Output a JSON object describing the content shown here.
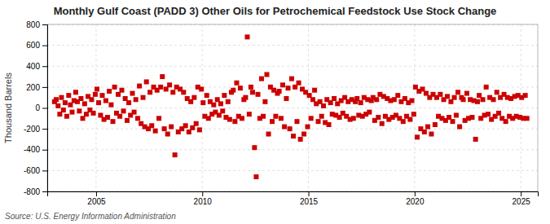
{
  "chart_data": {
    "type": "scatter",
    "title": "Monthly Gulf Coast (PADD 3) Other Oils for Petrochemical Feedstock Use Stock Change",
    "y_label": "Thousand Barrels",
    "annotations": [
      "Source: U.S. Energy Information Administration"
    ],
    "color": "#CC0000",
    "marker": "square",
    "grid": true,
    "xlim": [
      2002.7,
      2025.8
    ],
    "xticks": [
      2005,
      2010,
      2015,
      2020,
      2025
    ],
    "ylim": [
      -800,
      800
    ],
    "yticks": [
      -800,
      -600,
      -400,
      -200,
      0,
      200,
      400,
      600,
      800
    ],
    "x": [
      2003.04,
      2003.12,
      2003.21,
      2003.29,
      2003.37,
      2003.46,
      2003.54,
      2003.62,
      2003.71,
      2003.79,
      2003.87,
      2003.96,
      2004.04,
      2004.12,
      2004.21,
      2004.29,
      2004.37,
      2004.46,
      2004.54,
      2004.62,
      2004.71,
      2004.79,
      2004.87,
      2004.96,
      2005.04,
      2005.12,
      2005.21,
      2005.29,
      2005.37,
      2005.46,
      2005.54,
      2005.62,
      2005.71,
      2005.79,
      2005.87,
      2005.96,
      2006.04,
      2006.12,
      2006.21,
      2006.29,
      2006.37,
      2006.46,
      2006.54,
      2006.62,
      2006.71,
      2006.79,
      2006.87,
      2006.96,
      2007.04,
      2007.12,
      2007.21,
      2007.29,
      2007.37,
      2007.46,
      2007.54,
      2007.62,
      2007.71,
      2007.79,
      2007.87,
      2007.96,
      2008.04,
      2008.12,
      2008.21,
      2008.29,
      2008.37,
      2008.46,
      2008.54,
      2008.62,
      2008.71,
      2008.79,
      2008.87,
      2008.96,
      2009.04,
      2009.12,
      2009.21,
      2009.29,
      2009.37,
      2009.46,
      2009.54,
      2009.62,
      2009.71,
      2009.79,
      2009.87,
      2009.96,
      2010.04,
      2010.12,
      2010.21,
      2010.29,
      2010.37,
      2010.46,
      2010.54,
      2010.62,
      2010.71,
      2010.79,
      2010.87,
      2010.96,
      2011.04,
      2011.12,
      2011.21,
      2011.29,
      2011.37,
      2011.46,
      2011.54,
      2011.62,
      2011.71,
      2011.79,
      2011.87,
      2011.96,
      2012.04,
      2012.12,
      2012.21,
      2012.29,
      2012.37,
      2012.46,
      2012.54,
      2012.62,
      2012.71,
      2012.79,
      2012.87,
      2012.96,
      2013.04,
      2013.12,
      2013.21,
      2013.29,
      2013.37,
      2013.46,
      2013.54,
      2013.62,
      2013.71,
      2013.79,
      2013.87,
      2013.96,
      2014.04,
      2014.12,
      2014.21,
      2014.29,
      2014.37,
      2014.46,
      2014.54,
      2014.62,
      2014.71,
      2014.79,
      2014.87,
      2014.96,
      2015.04,
      2015.12,
      2015.21,
      2015.29,
      2015.37,
      2015.46,
      2015.54,
      2015.62,
      2015.71,
      2015.79,
      2015.87,
      2015.96,
      2016.04,
      2016.12,
      2016.21,
      2016.29,
      2016.37,
      2016.46,
      2016.54,
      2016.62,
      2016.71,
      2016.79,
      2016.87,
      2016.96,
      2017.04,
      2017.12,
      2017.21,
      2017.29,
      2017.37,
      2017.46,
      2017.54,
      2017.62,
      2017.71,
      2017.79,
      2017.87,
      2017.96,
      2018.04,
      2018.12,
      2018.21,
      2018.29,
      2018.37,
      2018.46,
      2018.54,
      2018.62,
      2018.71,
      2018.79,
      2018.87,
      2018.96,
      2019.04,
      2019.12,
      2019.21,
      2019.29,
      2019.37,
      2019.46,
      2019.54,
      2019.62,
      2019.71,
      2019.79,
      2019.87,
      2019.96,
      2020.04,
      2020.12,
      2020.21,
      2020.29,
      2020.37,
      2020.46,
      2020.54,
      2020.62,
      2020.71,
      2020.79,
      2020.87,
      2020.96,
      2021.04,
      2021.12,
      2021.21,
      2021.29,
      2021.37,
      2021.46,
      2021.54,
      2021.62,
      2021.71,
      2021.79,
      2021.87,
      2021.96,
      2022.04,
      2022.12,
      2022.21,
      2022.29,
      2022.37,
      2022.46,
      2022.54,
      2022.62,
      2022.71,
      2022.79,
      2022.87,
      2022.96,
      2023.04,
      2023.12,
      2023.21,
      2023.29,
      2023.37,
      2023.46,
      2023.54,
      2023.62,
      2023.71,
      2023.79,
      2023.87,
      2023.96,
      2024.04,
      2024.12,
      2024.21,
      2024.29,
      2024.37,
      2024.46,
      2024.54,
      2024.62,
      2024.71,
      2024.79,
      2024.87,
      2024.96,
      2025.04,
      2025.12,
      2025.21,
      2025.29
    ],
    "values": [
      60,
      80,
      20,
      -60,
      100,
      -20,
      50,
      -80,
      120,
      30,
      -40,
      70,
      150,
      60,
      -30,
      90,
      -100,
      40,
      -60,
      110,
      -20,
      80,
      -50,
      130,
      180,
      50,
      -70,
      120,
      -110,
      70,
      -90,
      160,
      30,
      -130,
      200,
      -50,
      130,
      -80,
      170,
      -30,
      90,
      -120,
      50,
      -70,
      140,
      -40,
      80,
      -100,
      210,
      -150,
      100,
      -180,
      250,
      -200,
      150,
      -170,
      200,
      -220,
      170,
      -100,
      200,
      300,
      -200,
      180,
      -250,
      220,
      -180,
      150,
      -450,
      200,
      -230,
      180,
      -200,
      150,
      -170,
      90,
      -230,
      60,
      -190,
      100,
      -150,
      200,
      -210,
      180,
      50,
      -80,
      120,
      -100,
      60,
      -60,
      30,
      -40,
      80,
      -70,
      40,
      -30,
      120,
      -90,
      60,
      -110,
      150,
      170,
      -130,
      240,
      -80,
      190,
      -100,
      80,
      100,
      680,
      -60,
      200,
      150,
      -380,
      -660,
      130,
      -100,
      280,
      -80,
      60,
      320,
      -250,
      200,
      -130,
      170,
      -80,
      140,
      160,
      -100,
      220,
      -180,
      90,
      190,
      -200,
      280,
      -270,
      200,
      -130,
      240,
      -300,
      180,
      -250,
      150,
      -180,
      120,
      -100,
      80,
      170,
      40,
      -130,
      60,
      -80,
      20,
      -140,
      80,
      -160,
      50,
      -60,
      90,
      -70,
      40,
      -90,
      70,
      -50,
      100,
      -80,
      60,
      -110,
      80,
      -100,
      60,
      90,
      -70,
      50,
      -80,
      100,
      -60,
      80,
      -40,
      70,
      100,
      -120,
      80,
      -90,
      130,
      -150,
      110,
      -80,
      90,
      -110,
      70,
      -90,
      80,
      -70,
      120,
      -100,
      60,
      -130,
      90,
      -80,
      50,
      -110,
      70,
      -60,
      200,
      -280,
      160,
      -200,
      180,
      -230,
      140,
      -180,
      100,
      -250,
      130,
      -160,
      100,
      -80,
      130,
      -100,
      80,
      -120,
      110,
      -90,
      60,
      -130,
      100,
      -70,
      150,
      -180,
      100,
      80,
      -120,
      140,
      -100,
      80,
      -90,
      70,
      -300,
      60,
      120,
      -100,
      80,
      -70,
      200,
      -60,
      100,
      -110,
      80,
      -80,
      150,
      -50,
      100,
      -100,
      130,
      -130,
      100,
      -80,
      90,
      -100,
      110,
      -80,
      120,
      -90,
      100,
      -100,
      120,
      -100
    ]
  }
}
